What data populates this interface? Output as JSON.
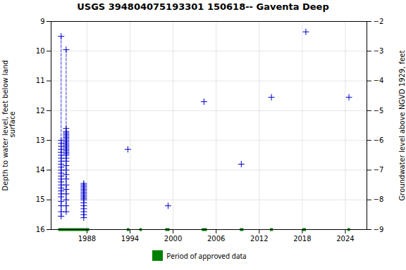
{
  "chart_data": {
    "type": "line",
    "title": "USGS 394804075193301 150618-- Gaventa Deep",
    "ylabel": "Depth to water level, feet below land\n surface",
    "y2label": "Groundwater level above NGVD 1929, feet",
    "xlim": [
      1983,
      2027
    ],
    "xticks": [
      1988,
      1994,
      2000,
      2006,
      2012,
      2018,
      2024
    ],
    "ylim": [
      16.0,
      9.0
    ],
    "yticks": [
      9.0,
      10.0,
      11.0,
      12.0,
      13.0,
      14.0,
      15.0,
      16.0
    ],
    "y2lim": [
      -9.0,
      -2.0
    ],
    "y2ticks": [
      -2.0,
      -3.0,
      -4.0,
      -5.0,
      -6.0,
      -7.0,
      -8.0,
      -9.0
    ],
    "grid": true,
    "legend": "bottom",
    "series": [
      {
        "type": "line",
        "color": "#0000cc",
        "marker": "plus",
        "line_style": "dashed",
        "x": 1984.4,
        "values": [
          9.5,
          13.0,
          13.1,
          13.2,
          13.3,
          13.4,
          13.5,
          13.6,
          13.7,
          13.8,
          13.9,
          14.0,
          14.1,
          14.2,
          14.3,
          14.4,
          14.5,
          14.6,
          14.7,
          14.8,
          14.9,
          15.05,
          15.2,
          15.4,
          15.55
        ]
      },
      {
        "type": "line",
        "color": "#0000cc",
        "marker": "plus",
        "line_style": "dashed",
        "x": 1985.1,
        "values": [
          9.95,
          12.6,
          12.7,
          12.75,
          12.8,
          12.85,
          12.9,
          12.95,
          13.0,
          13.05,
          13.1,
          13.15,
          13.2,
          13.25,
          13.3,
          13.35,
          13.4,
          13.45,
          13.5,
          13.6,
          13.7,
          13.85,
          14.0,
          14.15,
          14.3,
          14.5,
          14.65,
          14.8,
          15.0,
          15.2,
          15.4
        ]
      },
      {
        "type": "line",
        "color": "#0000cc",
        "marker": "plus",
        "line_style": "dashed",
        "x": 1987.55,
        "values": [
          14.45,
          14.5,
          14.55,
          14.6,
          14.65,
          14.7,
          14.75,
          14.8,
          14.85,
          14.9,
          14.95,
          15.0,
          15.1,
          15.2,
          15.3,
          15.4,
          15.5,
          15.6
        ]
      },
      {
        "type": "scatter",
        "color": "#0000cc",
        "marker": "plus",
        "x": [
          1993.7,
          1999.3,
          2004.3,
          2009.5,
          2013.7,
          2018.5,
          2024.5
        ],
        "values": [
          13.3,
          15.2,
          11.7,
          13.8,
          11.55,
          9.35,
          11.55
        ]
      },
      {
        "type": "segments",
        "name": "Period of approved data",
        "color": "#008000",
        "segments": [
          [
            1984.0,
            1988.3
          ],
          [
            1993.55,
            1993.9
          ],
          [
            1995.3,
            1995.65
          ],
          [
            1998.9,
            1999.5
          ],
          [
            2004.0,
            2004.7
          ],
          [
            2009.3,
            2009.8
          ],
          [
            2013.5,
            2013.9
          ],
          [
            2018.0,
            2018.5
          ],
          [
            2024.3,
            2024.65
          ]
        ]
      }
    ]
  }
}
